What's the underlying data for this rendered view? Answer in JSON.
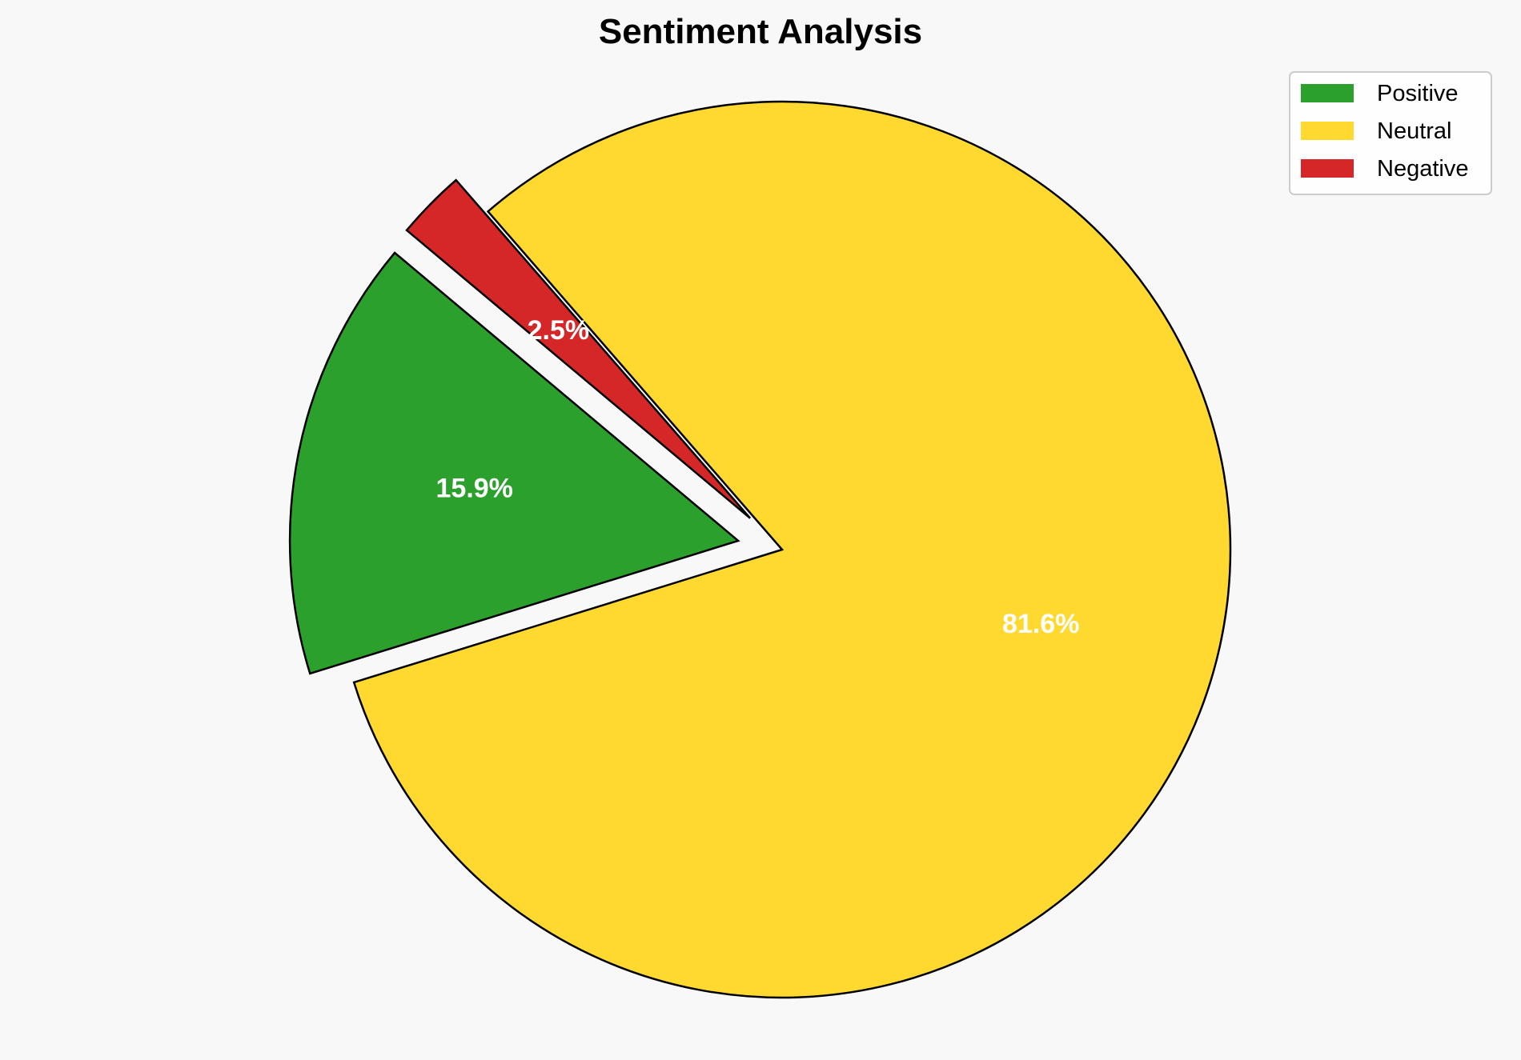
{
  "chart_data": {
    "type": "pie",
    "title": "Sentiment Analysis",
    "categories": [
      "Positive",
      "Neutral",
      "Negative"
    ],
    "values": [
      15.9,
      81.6,
      2.5
    ],
    "labels": [
      "15.9%",
      "81.6%",
      "2.5%"
    ],
    "colors": [
      "#2ca02c",
      "#ffd92f",
      "#d62728"
    ],
    "explode": [
      0.1,
      0,
      0.1
    ],
    "start_angle": 140,
    "direction": "counterclockwise",
    "edge_color": "#000000",
    "label_color": "#ffffff",
    "legend": {
      "placement": "top-right",
      "entries": [
        "Positive",
        "Neutral",
        "Negative"
      ]
    },
    "background": "#f8f8f8"
  }
}
